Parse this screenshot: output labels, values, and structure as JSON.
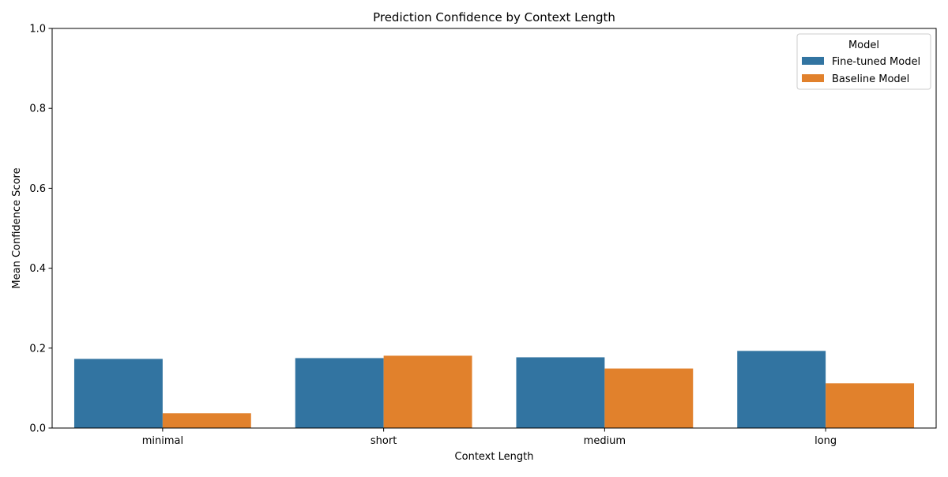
{
  "chart_data": {
    "type": "bar",
    "title": "Prediction Confidence by Context Length",
    "xlabel": "Context Length",
    "ylabel": "Mean Confidence Score",
    "categories": [
      "minimal",
      "short",
      "medium",
      "long"
    ],
    "series": [
      {
        "name": "Fine-tuned Model",
        "color": "#3274a1",
        "values": [
          0.173,
          0.175,
          0.177,
          0.193
        ]
      },
      {
        "name": "Baseline Model",
        "color": "#e1812c",
        "values": [
          0.037,
          0.181,
          0.149,
          0.112
        ]
      }
    ],
    "ylim": [
      0,
      1.0
    ],
    "yticks": [
      0.0,
      0.2,
      0.4,
      0.6,
      0.8,
      1.0
    ],
    "ytick_labels": [
      "0.0",
      "0.2",
      "0.4",
      "0.6",
      "0.8",
      "1.0"
    ],
    "grid": false,
    "legend": {
      "title": "Model",
      "position": "top-right"
    }
  }
}
